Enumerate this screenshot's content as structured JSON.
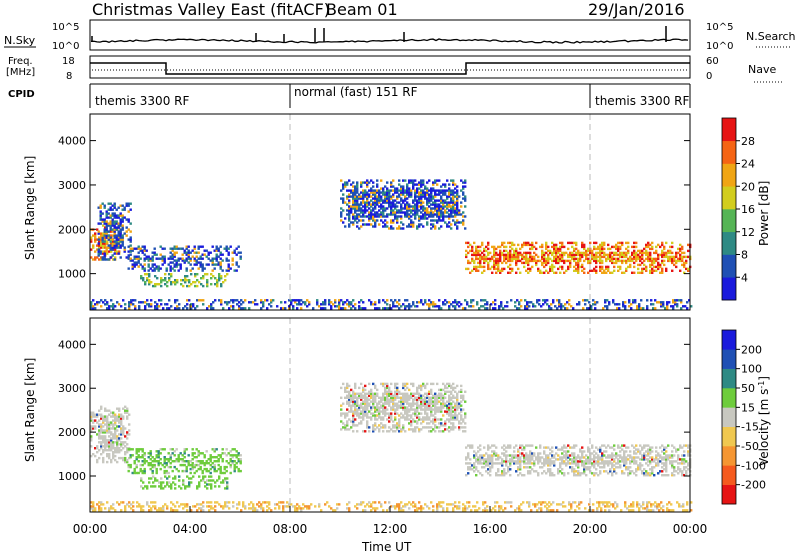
{
  "header": {
    "title": "Christmas Valley East (fitACF)",
    "beam": "Beam 01",
    "date": "29/Jan/2016"
  },
  "strips": {
    "nsky_label": "N.Sky",
    "nsearch_label": "N.Search",
    "count_ticks": [
      "10^5",
      "10^0"
    ],
    "freq_label_1": "Freq.",
    "freq_label_2": "[MHz]",
    "freq_ticks": [
      "18",
      "8"
    ],
    "nave_label": "Nave",
    "nave_ticks": [
      "60",
      "0"
    ],
    "cpid_label": "CPID",
    "cpid_segments": [
      {
        "label": "themis 3300 RF",
        "start": 0,
        "end": 8
      },
      {
        "label": "normal (fast) 151 RF",
        "start": 8,
        "end": 20
      },
      {
        "label": "themis 3300 RF",
        "start": 20,
        "end": 24
      }
    ]
  },
  "chart_data": [
    {
      "type": "heatmap",
      "name": "power",
      "ylabel": "Slant Range [km]",
      "xlabel": "Time UT",
      "xlim": [
        0,
        24
      ],
      "ylim": [
        180,
        4600
      ],
      "yticks": [
        1000,
        2000,
        3000,
        4000
      ],
      "xticks": [
        "00:00",
        "04:00",
        "08:00",
        "12:00",
        "16:00",
        "20:00",
        "00:00"
      ],
      "colorbar_label": "Power [dB]",
      "colorbar_ticks": [
        "4",
        "8",
        "12",
        "16",
        "20",
        "24",
        "28"
      ],
      "colorbar_colors": [
        "#1a1adc",
        "#1f50b4",
        "#2e8a84",
        "#55b455",
        "#d2cd1e",
        "#f0a514",
        "#f56414",
        "#e61414"
      ],
      "regions": [
        {
          "t": [
            0.0,
            1.2
          ],
          "r": [
            1300,
            2100
          ],
          "level": "strong"
        },
        {
          "t": [
            0.3,
            1.6
          ],
          "r": [
            1300,
            2600
          ],
          "level": "weak"
        },
        {
          "t": [
            1.5,
            6.0
          ],
          "r": [
            1050,
            1600
          ],
          "level": "weak"
        },
        {
          "t": [
            2.0,
            5.5
          ],
          "r": [
            700,
            1000
          ],
          "level": "mid"
        },
        {
          "t": [
            10.0,
            15.0
          ],
          "r": [
            2000,
            3100
          ],
          "level": "weak"
        },
        {
          "t": [
            15.0,
            24.0
          ],
          "r": [
            1000,
            1700
          ],
          "level": "strong"
        },
        {
          "t": [
            0.0,
            24.0
          ],
          "r": [
            200,
            400
          ],
          "level": "weak"
        }
      ]
    },
    {
      "type": "heatmap",
      "name": "velocity",
      "ylabel": "Slant Range [km]",
      "xlabel": "Time UT",
      "xlim": [
        0,
        24
      ],
      "ylim": [
        180,
        4600
      ],
      "yticks": [
        1000,
        2000,
        3000,
        4000
      ],
      "xticks": [
        "00:00",
        "04:00",
        "08:00",
        "12:00",
        "16:00",
        "20:00",
        "00:00"
      ],
      "colorbar_label": "Velocity [m s-1]",
      "colorbar_ticks": [
        "200",
        "100",
        "50",
        "15",
        "-15",
        "-50",
        "-100",
        "-200"
      ],
      "colorbar_colors": [
        "#1a1adc",
        "#1f50b4",
        "#2e8a84",
        "#6ecc3c",
        "#c8c8c0",
        "#f0c850",
        "#f59632",
        "#f55a1e",
        "#e61414"
      ],
      "regions": [
        {
          "t": [
            0.0,
            1.6
          ],
          "r": [
            1300,
            2600
          ],
          "level": "grey"
        },
        {
          "t": [
            1.5,
            6.0
          ],
          "r": [
            1050,
            1600
          ],
          "level": "green"
        },
        {
          "t": [
            2.0,
            5.5
          ],
          "r": [
            700,
            1000
          ],
          "level": "green"
        },
        {
          "t": [
            10.0,
            15.0
          ],
          "r": [
            2000,
            3100
          ],
          "level": "grey"
        },
        {
          "t": [
            15.0,
            24.0
          ],
          "r": [
            1000,
            1700
          ],
          "level": "grey"
        },
        {
          "t": [
            0.0,
            24.0
          ],
          "r": [
            200,
            400
          ],
          "level": "orange"
        }
      ]
    }
  ],
  "axis_title": "Time UT"
}
